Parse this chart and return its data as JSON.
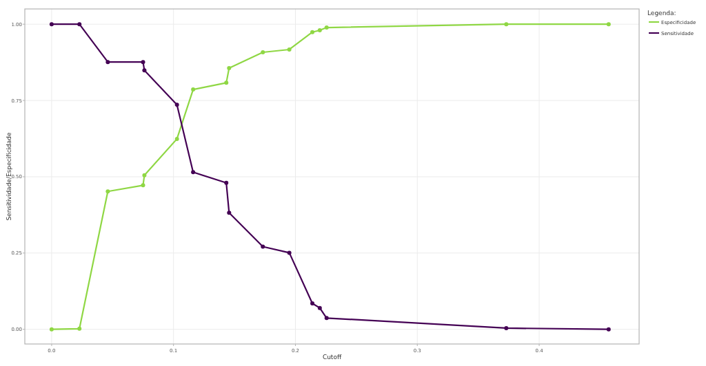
{
  "chart_data": {
    "type": "line",
    "xlabel": "Cutoff",
    "ylabel": "Sensitividade/Especificidade",
    "legend_title": "Legenda:",
    "x": [
      0,
      0.0228,
      0.0461,
      0.075,
      0.0761,
      0.1028,
      0.1161,
      0.1433,
      0.1456,
      0.1733,
      0.195,
      0.2139,
      0.22,
      0.2256,
      0.373,
      0.457
    ],
    "series": [
      {
        "name": "Especificidade",
        "color": "#8fd744",
        "values": [
          0,
          0.002,
          0.452,
          0.472,
          0.505,
          0.624,
          0.786,
          0.808,
          0.856,
          0.908,
          0.917,
          0.974,
          0.98,
          0.989,
          1,
          1
        ]
      },
      {
        "name": "Sensitividade",
        "color": "#440154",
        "values": [
          1,
          1,
          0.876,
          0.876,
          0.849,
          0.736,
          0.515,
          0.48,
          0.382,
          0.271,
          0.251,
          0.085,
          0.07,
          0.037,
          0.004,
          0
        ]
      }
    ],
    "xlim": [
      -0.022,
      0.482
    ],
    "ylim": [
      -0.048,
      1.05
    ],
    "xticks": [
      {
        "value": 0,
        "label": "0.0"
      },
      0.1,
      0.2,
      0.3,
      0.4
    ],
    "yticks": [
      {
        "value": 0,
        "label": "0.00"
      },
      0.25,
      {
        "value": 0.5,
        "label": "0.50"
      },
      0.75,
      {
        "value": 1,
        "label": "1.00"
      }
    ],
    "grid": true,
    "legend": "top right",
    "marker": "circle",
    "line_style": "solid"
  }
}
